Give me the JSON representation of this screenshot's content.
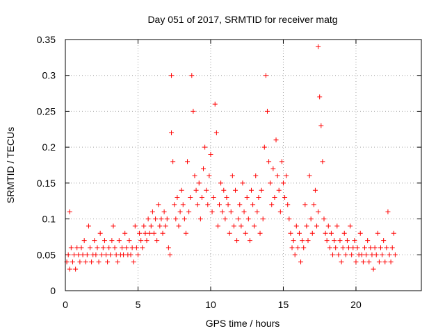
{
  "chart_data": {
    "type": "scatter",
    "title": "Day 051 of 2017, SRMTID for receiver matg",
    "xlabel": "GPS time / hours",
    "ylabel": "SRMTID / TECUs",
    "xlim": [
      0,
      24.5
    ],
    "ylim": [
      0,
      0.35
    ],
    "x_ticks": [
      0,
      5,
      10,
      15,
      20
    ],
    "x_tick_labels": [
      "0",
      "5",
      "10",
      "15",
      "20"
    ],
    "y_ticks": [
      0,
      0.05,
      0.1,
      0.15,
      0.2,
      0.25,
      0.3,
      0.35
    ],
    "y_tick_labels": [
      "0",
      "0.05",
      "0.1",
      "0.15",
      "0.2",
      "0.25",
      "0.3",
      "0.35"
    ],
    "grid": true,
    "marker": "+",
    "marker_color": "#ff0000",
    "series": [
      {
        "name": "SRMTID",
        "x": [
          0.1,
          0.2,
          0.3,
          0.3,
          0.4,
          0.5,
          0.6,
          0.7,
          0.8,
          0.9,
          1.0,
          1.1,
          1.2,
          1.3,
          1.4,
          1.5,
          1.6,
          1.7,
          1.8,
          1.9,
          2.0,
          2.1,
          2.2,
          2.3,
          2.4,
          2.5,
          2.6,
          2.7,
          2.8,
          2.9,
          3.0,
          3.1,
          3.2,
          3.3,
          3.4,
          3.5,
          3.6,
          3.7,
          3.8,
          3.9,
          4.0,
          4.1,
          4.2,
          4.3,
          4.4,
          4.5,
          4.6,
          4.7,
          4.8,
          4.9,
          5.0,
          5.1,
          5.2,
          5.3,
          5.4,
          5.5,
          5.6,
          5.7,
          5.8,
          5.9,
          6.0,
          6.1,
          6.2,
          6.3,
          6.4,
          6.5,
          6.6,
          6.7,
          6.8,
          6.9,
          7.0,
          7.1,
          7.2,
          7.3,
          7.3,
          7.4,
          7.5,
          7.6,
          7.7,
          7.8,
          7.9,
          8.0,
          8.1,
          8.2,
          8.3,
          8.4,
          8.5,
          8.6,
          8.7,
          8.8,
          8.9,
          9.0,
          9.1,
          9.2,
          9.3,
          9.4,
          9.5,
          9.6,
          9.7,
          9.8,
          9.9,
          10.0,
          10.1,
          10.2,
          10.3,
          10.4,
          10.5,
          10.6,
          10.7,
          10.8,
          10.9,
          11.0,
          11.1,
          11.2,
          11.3,
          11.4,
          11.5,
          11.6,
          11.7,
          11.8,
          11.9,
          12.0,
          12.1,
          12.2,
          12.3,
          12.4,
          12.5,
          12.6,
          12.7,
          12.8,
          12.9,
          13.0,
          13.1,
          13.2,
          13.3,
          13.4,
          13.5,
          13.6,
          13.7,
          13.8,
          13.9,
          14.0,
          14.1,
          14.2,
          14.3,
          14.4,
          14.5,
          14.6,
          14.7,
          14.8,
          14.9,
          15.0,
          15.1,
          15.2,
          15.3,
          15.4,
          15.5,
          15.6,
          15.7,
          15.8,
          15.9,
          16.0,
          16.1,
          16.2,
          16.3,
          16.4,
          16.5,
          16.6,
          16.7,
          16.8,
          16.9,
          17.0,
          17.1,
          17.2,
          17.3,
          17.4,
          17.4,
          17.5,
          17.6,
          17.7,
          17.8,
          17.9,
          18.0,
          18.1,
          18.2,
          18.3,
          18.4,
          18.5,
          18.6,
          18.7,
          18.8,
          18.9,
          19.0,
          19.1,
          19.2,
          19.3,
          19.4,
          19.5,
          19.6,
          19.7,
          19.8,
          19.9,
          20.0,
          20.1,
          20.2,
          20.3,
          20.4,
          20.5,
          20.6,
          20.7,
          20.8,
          20.9,
          21.0,
          21.1,
          21.2,
          21.3,
          21.4,
          21.5,
          21.6,
          21.7,
          21.8,
          21.9,
          22.0,
          22.1,
          22.2,
          22.3,
          22.4,
          22.5,
          22.6,
          22.7
        ],
        "y": [
          0.04,
          0.05,
          0.03,
          0.11,
          0.06,
          0.04,
          0.05,
          0.03,
          0.06,
          0.05,
          0.04,
          0.06,
          0.05,
          0.07,
          0.04,
          0.05,
          0.09,
          0.06,
          0.04,
          0.05,
          0.07,
          0.05,
          0.06,
          0.04,
          0.08,
          0.05,
          0.06,
          0.07,
          0.05,
          0.04,
          0.06,
          0.05,
          0.07,
          0.09,
          0.06,
          0.05,
          0.04,
          0.07,
          0.05,
          0.06,
          0.05,
          0.08,
          0.06,
          0.05,
          0.07,
          0.05,
          0.06,
          0.04,
          0.09,
          0.06,
          0.05,
          0.08,
          0.07,
          0.06,
          0.09,
          0.08,
          0.07,
          0.1,
          0.08,
          0.09,
          0.11,
          0.08,
          0.1,
          0.07,
          0.12,
          0.09,
          0.1,
          0.08,
          0.11,
          0.09,
          0.1,
          0.06,
          0.05,
          0.3,
          0.22,
          0.18,
          0.12,
          0.1,
          0.13,
          0.09,
          0.11,
          0.14,
          0.12,
          0.1,
          0.08,
          0.18,
          0.11,
          0.13,
          0.3,
          0.25,
          0.16,
          0.14,
          0.12,
          0.15,
          0.1,
          0.13,
          0.17,
          0.2,
          0.14,
          0.12,
          0.16,
          0.19,
          0.11,
          0.13,
          0.26,
          0.22,
          0.09,
          0.12,
          0.15,
          0.11,
          0.14,
          0.1,
          0.13,
          0.12,
          0.08,
          0.11,
          0.16,
          0.09,
          0.14,
          0.07,
          0.1,
          0.12,
          0.09,
          0.15,
          0.11,
          0.08,
          0.13,
          0.1,
          0.07,
          0.14,
          0.12,
          0.09,
          0.16,
          0.11,
          0.13,
          0.08,
          0.14,
          0.1,
          0.2,
          0.3,
          0.25,
          0.18,
          0.15,
          0.12,
          0.17,
          0.13,
          0.21,
          0.16,
          0.14,
          0.11,
          0.18,
          0.15,
          0.13,
          0.16,
          0.12,
          0.1,
          0.08,
          0.06,
          0.07,
          0.05,
          0.09,
          0.06,
          0.08,
          0.04,
          0.07,
          0.06,
          0.12,
          0.09,
          0.07,
          0.16,
          0.1,
          0.08,
          0.12,
          0.14,
          0.09,
          0.11,
          0.34,
          0.27,
          0.23,
          0.18,
          0.1,
          0.08,
          0.07,
          0.09,
          0.06,
          0.08,
          0.05,
          0.07,
          0.06,
          0.09,
          0.05,
          0.07,
          0.04,
          0.06,
          0.08,
          0.05,
          0.07,
          0.06,
          0.09,
          0.05,
          0.06,
          0.07,
          0.04,
          0.06,
          0.05,
          0.08,
          0.05,
          0.04,
          0.06,
          0.05,
          0.07,
          0.04,
          0.06,
          0.05,
          0.03,
          0.06,
          0.05,
          0.08,
          0.04,
          0.06,
          0.05,
          0.07,
          0.04,
          0.06,
          0.11,
          0.05,
          0.04,
          0.06,
          0.08,
          0.05
        ]
      }
    ]
  }
}
